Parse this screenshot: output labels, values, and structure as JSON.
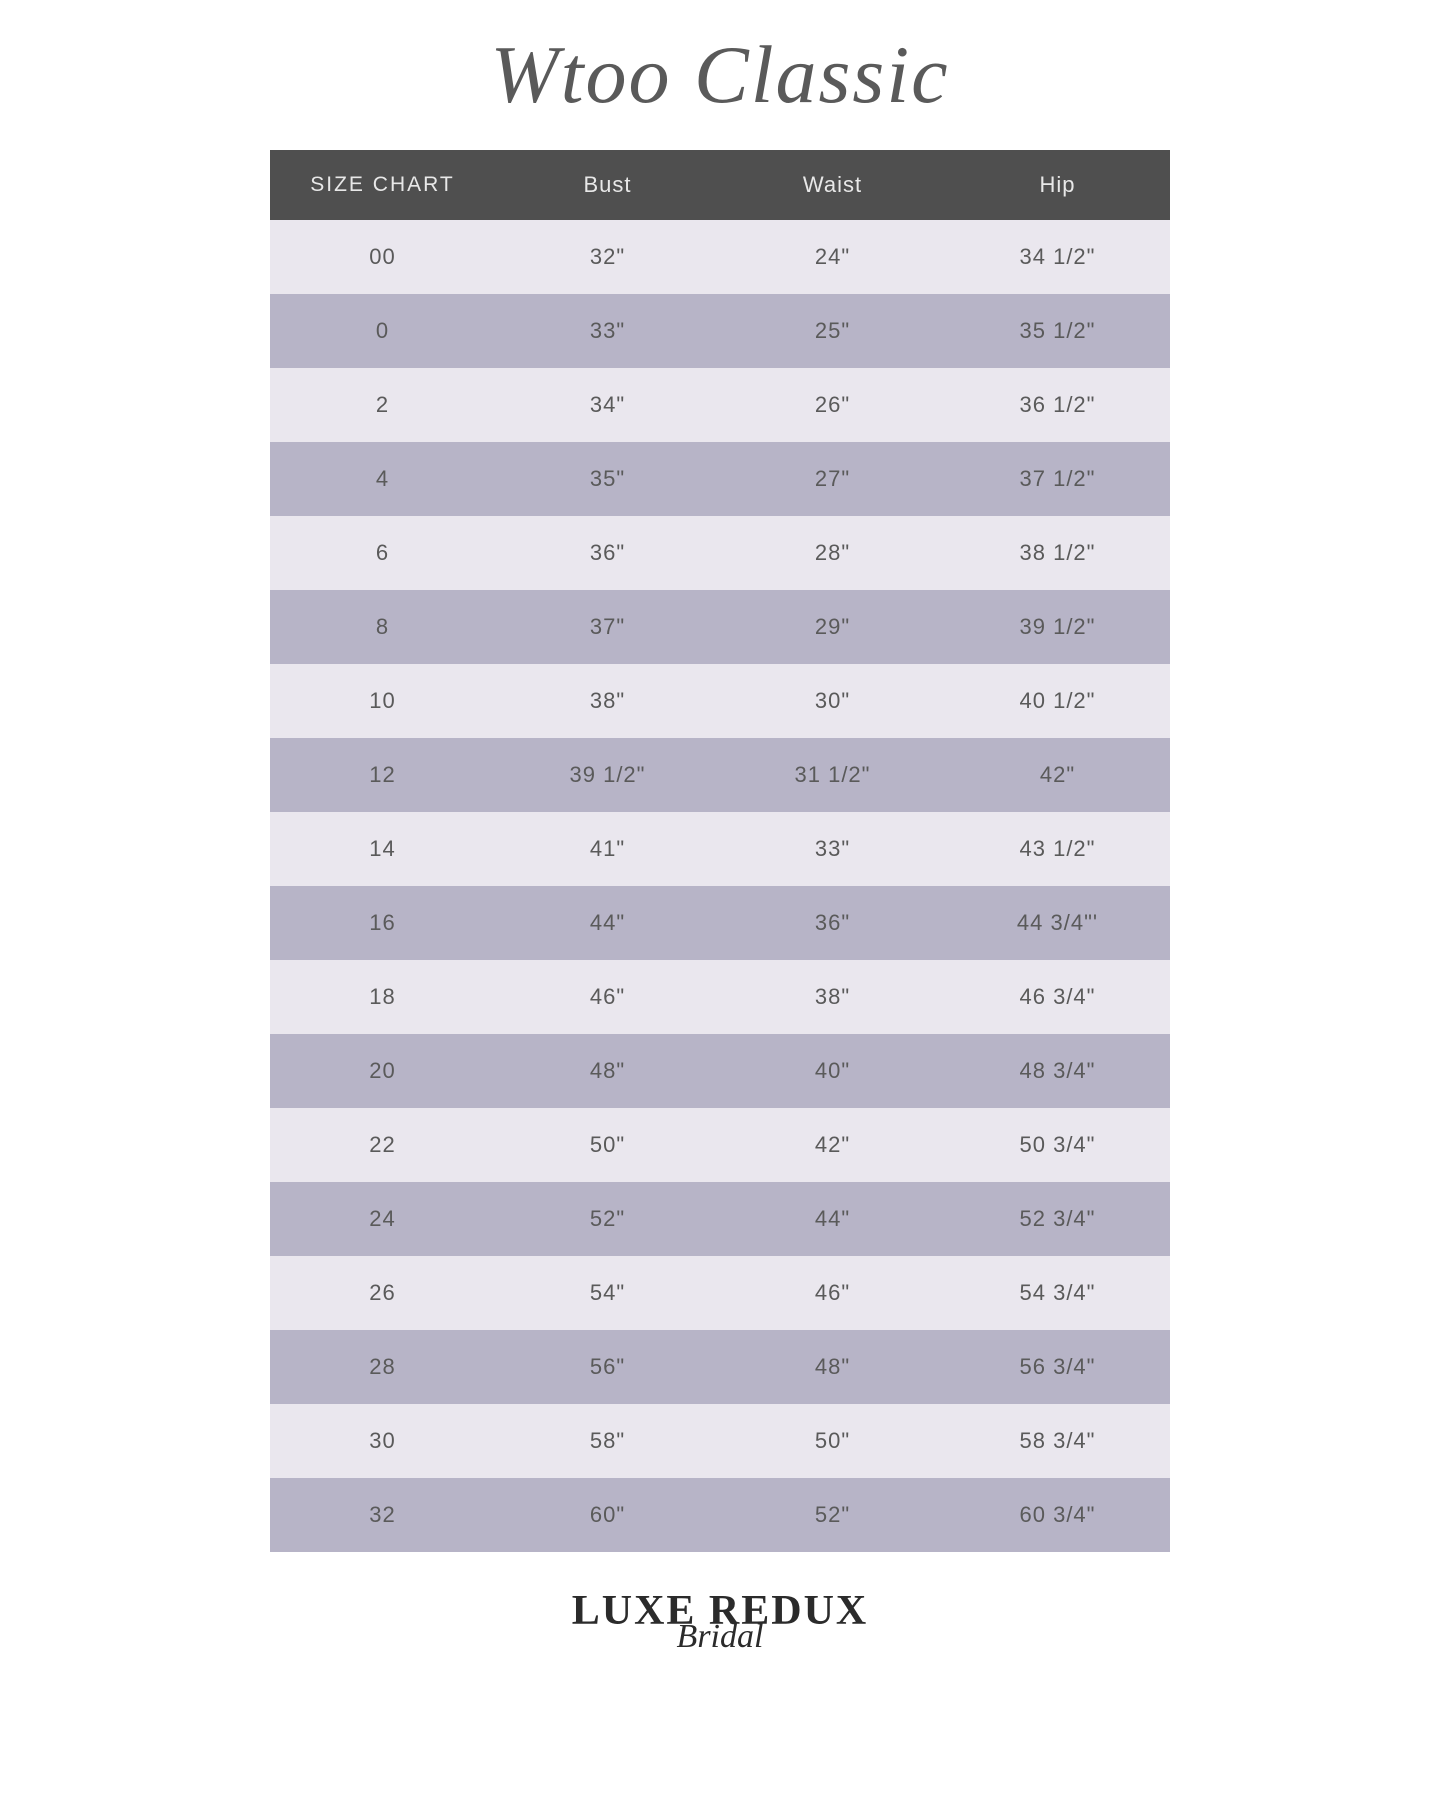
{
  "title": "Wtoo Classic",
  "footer": {
    "main": "LUXE REDUX",
    "sub": "Bridal"
  },
  "table": {
    "header_bg": "#4f4f4f",
    "header_text_color": "#e8e8e8",
    "row_light_bg": "#eae7ee",
    "row_dark_bg": "#b7b4c7",
    "cell_text_color": "#5a5a5a",
    "columns": [
      "SIZE CHART",
      "Bust",
      "Waist",
      "Hip"
    ],
    "rows": [
      [
        "00",
        "32\"",
        "24\"",
        "34 1/2\""
      ],
      [
        "0",
        "33\"",
        "25\"",
        "35 1/2\""
      ],
      [
        "2",
        "34\"",
        "26\"",
        "36 1/2\""
      ],
      [
        "4",
        "35\"",
        "27\"",
        "37 1/2\""
      ],
      [
        "6",
        "36\"",
        "28\"",
        "38 1/2\""
      ],
      [
        "8",
        "37\"",
        "29\"",
        "39 1/2\""
      ],
      [
        "10",
        "38\"",
        "30\"",
        "40 1/2\""
      ],
      [
        "12",
        "39 1/2\"",
        "31 1/2\"",
        "42\""
      ],
      [
        "14",
        "41\"",
        "33\"",
        "43 1/2\""
      ],
      [
        "16",
        "44\"",
        "36\"",
        "44 3/4\"'"
      ],
      [
        "18",
        "46\"",
        "38\"",
        "46 3/4\""
      ],
      [
        "20",
        "48\"",
        "40\"",
        "48 3/4\""
      ],
      [
        "22",
        "50\"",
        "42\"",
        "50 3/4\""
      ],
      [
        "24",
        "52\"",
        "44\"",
        "52 3/4\""
      ],
      [
        "26",
        "54\"",
        "46\"",
        "54 3/4\""
      ],
      [
        "28",
        "56\"",
        "48\"",
        "56 3/4\""
      ],
      [
        "30",
        "58\"",
        "50\"",
        "58 3/4\""
      ],
      [
        "32",
        "60\"",
        "52\"",
        "60 3/4\""
      ]
    ]
  }
}
